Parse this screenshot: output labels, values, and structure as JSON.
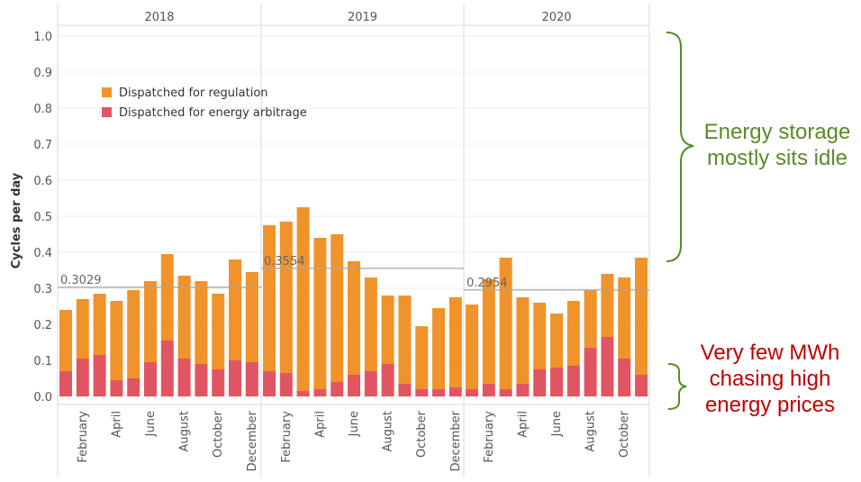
{
  "chart_data": {
    "type": "bar",
    "stacked": true,
    "ylabel": "Cycles per day",
    "ylim": [
      0.0,
      1.0
    ],
    "yticks": [
      "0.0",
      "0.1",
      "0.2",
      "0.3",
      "0.4",
      "0.5",
      "0.6",
      "0.7",
      "0.8",
      "0.9",
      "1.0"
    ],
    "grid": true,
    "legend_position": "top-left",
    "panels": [
      {
        "year": "2018",
        "months": [
          "January",
          "February",
          "March",
          "April",
          "May",
          "June",
          "July",
          "August",
          "September",
          "October",
          "November",
          "December"
        ],
        "month_labels": [
          "February",
          "April",
          "June",
          "August",
          "October",
          "December"
        ],
        "average_label": "0.3029",
        "average": 0.3029,
        "arbitrage": [
          0.07,
          0.105,
          0.115,
          0.045,
          0.05,
          0.095,
          0.155,
          0.105,
          0.09,
          0.075,
          0.1,
          0.095
        ],
        "total": [
          0.24,
          0.27,
          0.285,
          0.265,
          0.295,
          0.32,
          0.395,
          0.335,
          0.32,
          0.285,
          0.38,
          0.345
        ]
      },
      {
        "year": "2019",
        "months": [
          "January",
          "February",
          "March",
          "April",
          "May",
          "June",
          "July",
          "August",
          "September",
          "October",
          "November",
          "December"
        ],
        "month_labels": [
          "February",
          "April",
          "June",
          "August",
          "October",
          "December"
        ],
        "average_label": "0.3554",
        "average": 0.3554,
        "arbitrage": [
          0.07,
          0.065,
          0.015,
          0.02,
          0.04,
          0.06,
          0.07,
          0.09,
          0.035,
          0.02,
          0.02,
          0.025
        ],
        "total": [
          0.475,
          0.485,
          0.525,
          0.44,
          0.45,
          0.375,
          0.33,
          0.28,
          0.28,
          0.195,
          0.245,
          0.275
        ]
      },
      {
        "year": "2020",
        "months": [
          "January",
          "February",
          "March",
          "April",
          "May",
          "June",
          "July",
          "August",
          "September",
          "October",
          "November"
        ],
        "month_labels": [
          "February",
          "April",
          "June",
          "August",
          "October"
        ],
        "average_label": "0.2954",
        "average": 0.2954,
        "arbitrage": [
          0.02,
          0.035,
          0.02,
          0.035,
          0.075,
          0.08,
          0.085,
          0.135,
          0.165,
          0.105,
          0.06
        ],
        "total": [
          0.255,
          0.325,
          0.385,
          0.275,
          0.26,
          0.23,
          0.265,
          0.295,
          0.34,
          0.33,
          0.385
        ]
      }
    ],
    "series": [
      {
        "name": "Dispatched for regulation",
        "color": "#f0932b"
      },
      {
        "name": "Dispatched for energy arbitrage",
        "color": "#e15563"
      }
    ]
  },
  "colors": {
    "regulation": "#f0932b",
    "arbitrage": "#e15563",
    "grid": "#ededed",
    "panel_divider": "#d9d9d9",
    "avg_line": "#a6a6a6",
    "brace_idle": "#5a8a28",
    "brace_prices": "#5a8a28"
  },
  "annotations": {
    "idle": "Energy storage mostly sits idle",
    "prices": "Very few MWh chasing high energy prices"
  }
}
